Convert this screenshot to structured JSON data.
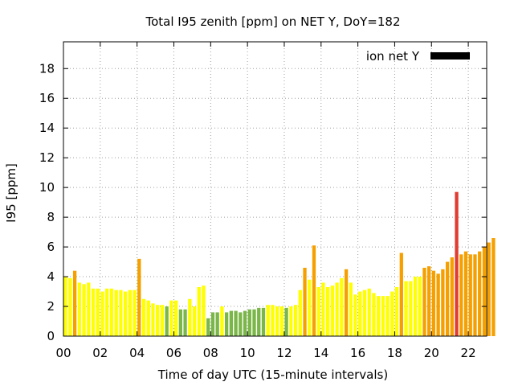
{
  "chart_data": {
    "type": "bar",
    "title": "Total I95 zenith [ppm] on NET Y, DoY=182",
    "xlabel": "Time of day UTC (15-minute intervals)",
    "ylabel": "I95 [ppm]",
    "xlim": [
      0,
      23
    ],
    "ylim": [
      0,
      19.8
    ],
    "xticks": [
      0,
      2,
      4,
      6,
      8,
      10,
      12,
      14,
      16,
      18,
      20,
      22
    ],
    "xtick_labels": [
      "00",
      "02",
      "04",
      "06",
      "08",
      "10",
      "12",
      "14",
      "16",
      "18",
      "20",
      "22"
    ],
    "yticks": [
      0,
      2,
      4,
      6,
      8,
      10,
      12,
      14,
      16,
      18
    ],
    "ytick_labels": [
      "0",
      "2",
      "4",
      "6",
      "8",
      "10",
      "12",
      "14",
      "16",
      "18"
    ],
    "grid": true,
    "legend": {
      "label": "ion net Y",
      "position": "top-right",
      "color": "#000000"
    },
    "interval_hours": 0.25,
    "bar_colors": {
      "green": "#7ab648",
      "yellow": "#ffff00",
      "orange": "#f5a000",
      "red": "#e03c31"
    },
    "values": [
      4.0,
      3.9,
      4.4,
      3.6,
      3.5,
      3.6,
      3.2,
      3.2,
      3.0,
      3.2,
      3.2,
      3.1,
      3.1,
      3.0,
      3.1,
      3.1,
      5.2,
      2.5,
      2.4,
      2.2,
      2.1,
      2.1,
      2.0,
      2.4,
      2.4,
      1.8,
      1.8,
      2.5,
      2.0,
      3.3,
      3.4,
      1.2,
      1.6,
      1.6,
      2.0,
      1.6,
      1.7,
      1.7,
      1.6,
      1.7,
      1.8,
      1.8,
      1.9,
      1.9,
      2.1,
      2.1,
      2.0,
      2.0,
      1.9,
      2.0,
      2.1,
      3.1,
      4.6,
      3.8,
      6.1,
      3.3,
      3.6,
      3.3,
      3.4,
      3.6,
      3.9,
      4.5,
      3.6,
      2.8,
      3.0,
      3.1,
      3.2,
      2.9,
      2.7,
      2.7,
      2.7,
      3.0,
      3.3,
      5.6,
      3.7,
      3.7,
      4.0,
      4.0,
      4.6,
      4.7,
      4.4,
      4.2,
      4.5,
      5.0,
      5.3,
      9.7,
      5.5,
      5.7,
      5.5,
      5.5,
      5.7,
      6.0,
      6.3,
      6.6
    ],
    "colors": [
      "yellow",
      "yellow",
      "orange",
      "yellow",
      "yellow",
      "yellow",
      "yellow",
      "yellow",
      "yellow",
      "yellow",
      "yellow",
      "yellow",
      "yellow",
      "yellow",
      "yellow",
      "yellow",
      "orange",
      "yellow",
      "yellow",
      "yellow",
      "yellow",
      "yellow",
      "green",
      "yellow",
      "yellow",
      "green",
      "green",
      "yellow",
      "yellow",
      "yellow",
      "yellow",
      "green",
      "green",
      "green",
      "yellow",
      "green",
      "green",
      "green",
      "green",
      "green",
      "green",
      "green",
      "green",
      "green",
      "yellow",
      "yellow",
      "yellow",
      "yellow",
      "green",
      "yellow",
      "yellow",
      "yellow",
      "orange",
      "yellow",
      "orange",
      "yellow",
      "yellow",
      "yellow",
      "yellow",
      "yellow",
      "yellow",
      "orange",
      "yellow",
      "yellow",
      "yellow",
      "yellow",
      "yellow",
      "yellow",
      "yellow",
      "yellow",
      "yellow",
      "yellow",
      "yellow",
      "orange",
      "yellow",
      "yellow",
      "yellow",
      "yellow",
      "orange",
      "orange",
      "orange",
      "orange",
      "orange",
      "orange",
      "orange",
      "red",
      "orange",
      "orange",
      "orange",
      "orange",
      "orange",
      "orange",
      "orange",
      "orange"
    ]
  }
}
